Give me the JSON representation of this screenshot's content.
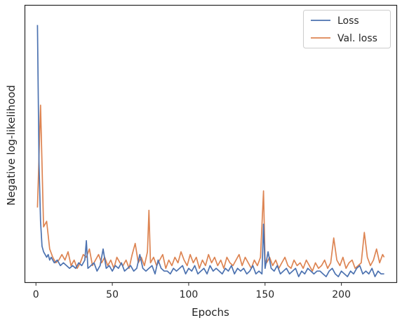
{
  "chart_data": {
    "type": "line",
    "title": "",
    "xlabel": "Epochs",
    "ylabel": "Negative log-likelihood",
    "xlim": [
      -7,
      236
    ],
    "ylim": [
      0,
      100
    ],
    "xticks": [
      0,
      50,
      100,
      150,
      200
    ],
    "show_yticks": false,
    "grid": false,
    "legend_position": "top-right",
    "series": [
      {
        "name": "Loss",
        "color": "#4c72b0",
        "x": [
          1,
          2,
          3,
          4,
          5,
          6,
          7,
          8,
          9,
          10,
          12,
          14,
          16,
          18,
          20,
          22,
          24,
          26,
          28,
          30,
          32,
          33,
          34,
          36,
          38,
          40,
          42,
          44,
          46,
          48,
          50,
          52,
          54,
          56,
          58,
          60,
          62,
          64,
          66,
          68,
          70,
          72,
          74,
          76,
          78,
          80,
          82,
          84,
          86,
          88,
          90,
          92,
          94,
          96,
          98,
          100,
          102,
          104,
          106,
          108,
          110,
          112,
          114,
          116,
          118,
          120,
          122,
          124,
          126,
          128,
          130,
          132,
          134,
          136,
          138,
          140,
          142,
          144,
          146,
          148,
          149,
          150,
          152,
          154,
          156,
          158,
          160,
          162,
          164,
          166,
          168,
          170,
          172,
          174,
          176,
          178,
          180,
          182,
          184,
          186,
          188,
          190,
          192,
          194,
          196,
          198,
          200,
          202,
          204,
          206,
          208,
          210,
          212,
          214,
          216,
          218,
          220,
          222,
          224,
          226,
          228
        ],
        "values": [
          93,
          43,
          22,
          13,
          11,
          10,
          9,
          10,
          8,
          9,
          7,
          8,
          6,
          7,
          6,
          5,
          6,
          5,
          7,
          6,
          8,
          15,
          5,
          6,
          7,
          4,
          6,
          12,
          5,
          6,
          4,
          6,
          5,
          7,
          4,
          5,
          6,
          4,
          5,
          10,
          5,
          4,
          5,
          6,
          3,
          8,
          5,
          4,
          4,
          3,
          5,
          4,
          5,
          6,
          3,
          5,
          4,
          6,
          3,
          4,
          5,
          3,
          6,
          4,
          5,
          4,
          3,
          5,
          4,
          6,
          3,
          5,
          4,
          5,
          3,
          4,
          6,
          3,
          4,
          3,
          21,
          5,
          11,
          5,
          4,
          6,
          3,
          4,
          5,
          3,
          4,
          5,
          2,
          4,
          3,
          5,
          4,
          3,
          4,
          4,
          3,
          2,
          4,
          5,
          3,
          2,
          4,
          3,
          2,
          4,
          3,
          5,
          6,
          3,
          4,
          3,
          5,
          2,
          4,
          3,
          3
        ]
      },
      {
        "name": "Val. loss",
        "color": "#dd8452",
        "x": [
          1,
          3,
          5,
          7,
          9,
          11,
          13,
          15,
          17,
          19,
          21,
          23,
          25,
          27,
          29,
          31,
          33,
          35,
          37,
          39,
          41,
          43,
          45,
          47,
          49,
          51,
          53,
          55,
          57,
          59,
          61,
          63,
          65,
          67,
          69,
          71,
          73,
          74,
          75,
          77,
          79,
          81,
          83,
          85,
          87,
          89,
          91,
          93,
          95,
          97,
          99,
          101,
          103,
          105,
          107,
          109,
          111,
          113,
          115,
          117,
          119,
          121,
          123,
          125,
          127,
          129,
          131,
          133,
          135,
          137,
          139,
          141,
          143,
          145,
          147,
          149,
          150,
          151,
          153,
          155,
          157,
          159,
          161,
          163,
          165,
          167,
          169,
          171,
          173,
          175,
          177,
          179,
          181,
          183,
          185,
          187,
          189,
          191,
          193,
          195,
          197,
          199,
          201,
          203,
          205,
          207,
          209,
          211,
          213,
          215,
          217,
          219,
          221,
          223,
          225,
          227,
          228
        ],
        "values": [
          27,
          64,
          20,
          22,
          12,
          9,
          7,
          8,
          10,
          8,
          11,
          6,
          8,
          5,
          7,
          10,
          9,
          12,
          6,
          8,
          10,
          7,
          9,
          6,
          8,
          5,
          9,
          7,
          6,
          8,
          5,
          10,
          14,
          7,
          9,
          6,
          11,
          26,
          7,
          9,
          6,
          8,
          10,
          5,
          8,
          6,
          9,
          7,
          11,
          8,
          6,
          10,
          7,
          9,
          5,
          8,
          6,
          10,
          7,
          9,
          6,
          8,
          5,
          9,
          7,
          6,
          8,
          10,
          6,
          9,
          7,
          5,
          8,
          6,
          9,
          33,
          8,
          7,
          9,
          6,
          8,
          5,
          7,
          9,
          6,
          5,
          8,
          6,
          7,
          5,
          8,
          6,
          4,
          7,
          5,
          6,
          8,
          5,
          7,
          16,
          8,
          6,
          9,
          5,
          7,
          8,
          5,
          6,
          7,
          18,
          9,
          6,
          8,
          12,
          7,
          10,
          9
        ]
      }
    ]
  }
}
